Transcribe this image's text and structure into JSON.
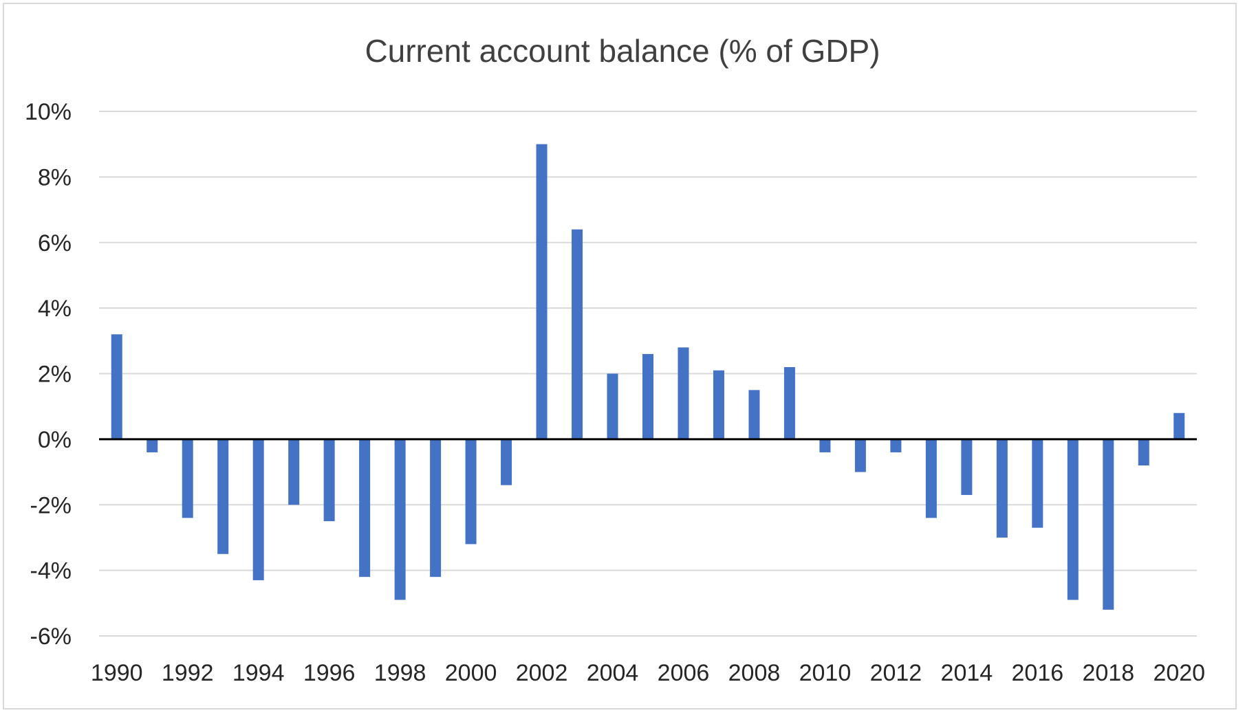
{
  "chart_data": {
    "type": "bar",
    "title": "Current account balance (% of GDP)",
    "xlabel": "",
    "ylabel": "",
    "ylim": [
      -6,
      10
    ],
    "yticks": [
      10,
      8,
      6,
      4,
      2,
      0,
      -2,
      -4,
      -6
    ],
    "ytick_labels": [
      "10%",
      "8%",
      "6%",
      "4%",
      "2%",
      "0%",
      "-2%",
      "-4%",
      "-6%"
    ],
    "xtick_labels": [
      "1990",
      "1992",
      "1994",
      "1996",
      "1998",
      "2000",
      "2002",
      "2004",
      "2006",
      "2008",
      "2010",
      "2012",
      "2014",
      "2016",
      "2018",
      "2020"
    ],
    "grid": true,
    "bar_color": "#4472c4",
    "zero_line_color": "#000000",
    "gridline_color": "#d9d9d9",
    "categories": [
      "1990",
      "1991",
      "1992",
      "1993",
      "1994",
      "1995",
      "1996",
      "1997",
      "1998",
      "1999",
      "2000",
      "2001",
      "2002",
      "2003",
      "2004",
      "2005",
      "2006",
      "2007",
      "2008",
      "2009",
      "2010",
      "2011",
      "2012",
      "2013",
      "2014",
      "2015",
      "2016",
      "2017",
      "2018",
      "2019",
      "2020"
    ],
    "values": [
      3.2,
      -0.4,
      -2.4,
      -3.5,
      -4.3,
      -2.0,
      -2.5,
      -4.2,
      -4.9,
      -4.2,
      -3.2,
      -1.4,
      9.0,
      6.4,
      2.0,
      2.6,
      2.8,
      2.1,
      1.5,
      2.2,
      -0.4,
      -1.0,
      -0.4,
      -2.4,
      -1.7,
      -3.0,
      -2.7,
      -4.9,
      -5.2,
      -0.8,
      0.8
    ]
  }
}
